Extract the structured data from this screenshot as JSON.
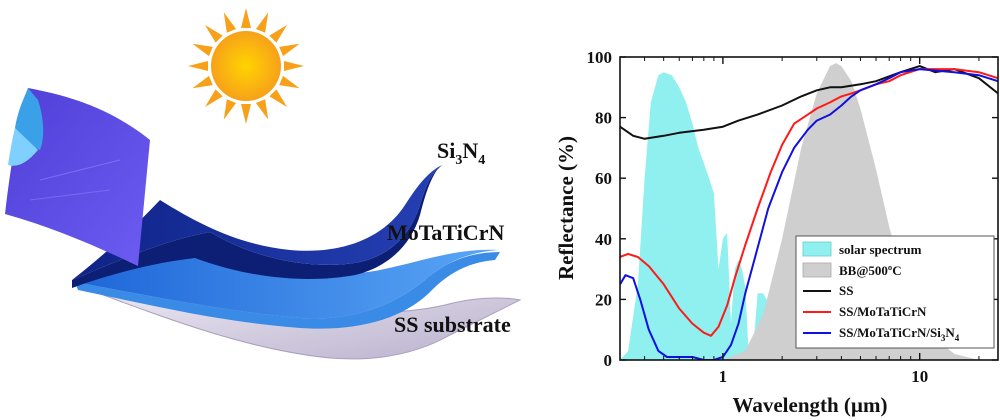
{
  "illustration": {
    "layer_top": "Si",
    "layer_top_sub1": "3",
    "layer_top_mid": "N",
    "layer_top_sub2": "4",
    "layer_mid": "MoTaTiCrN",
    "layer_bottom": "SS substrate",
    "colors": {
      "sun": "#f9a21b",
      "si3n4": "#1c2f9c",
      "motaticrn": "#2f86e8",
      "substrate": "#c9c2d8"
    }
  },
  "chart_data": {
    "type": "line",
    "xlabel": "Wavelength (µm)",
    "ylabel": "Reflectance (%)",
    "x_scale": "log",
    "xlim": [
      0.3,
      25
    ],
    "ylim": [
      0,
      100
    ],
    "x_ticks": [
      1,
      10
    ],
    "x_tick_labels": [
      "1",
      "10"
    ],
    "y_ticks": [
      0,
      20,
      40,
      60,
      80,
      100
    ],
    "y_tick_labels": [
      "0",
      "20",
      "40",
      "60",
      "80",
      "100"
    ],
    "legend_position": "bottom-right",
    "legend": [
      {
        "label": "solar spectrum",
        "kind": "area"
      },
      {
        "label": "BB@500ºC",
        "kind": "area"
      },
      {
        "label": "SS",
        "kind": "line"
      },
      {
        "label": "SS/MoTaTiCrN",
        "kind": "line"
      },
      {
        "label": "SS/MoTaTiCrN/Si",
        "sub1": "3",
        "mid": "N",
        "sub2": "4",
        "kind": "line"
      }
    ],
    "series": [
      {
        "name": "solar spectrum",
        "style": "area",
        "color": "#8ff0ef",
        "x": [
          0.3,
          0.33,
          0.37,
          0.4,
          0.43,
          0.47,
          0.5,
          0.55,
          0.6,
          0.65,
          0.7,
          0.75,
          0.8,
          0.85,
          0.9,
          0.95,
          1.0,
          1.05,
          1.1,
          1.15,
          1.2,
          1.25,
          1.3,
          1.35,
          1.4,
          1.45,
          1.5,
          1.6,
          1.7,
          1.8,
          1.85,
          1.9,
          2.0,
          2.1,
          2.2,
          2.3,
          2.4,
          2.5,
          2.6,
          2.7
        ],
        "y": [
          0,
          3,
          25,
          60,
          85,
          94,
          95,
          94,
          90,
          85,
          78,
          70,
          65,
          60,
          55,
          30,
          40,
          42,
          12,
          30,
          33,
          30,
          24,
          3,
          0,
          10,
          22,
          22,
          19,
          12,
          0,
          0,
          4,
          7,
          6,
          5,
          4,
          3,
          0,
          0
        ]
      },
      {
        "name": "BB@500ºC",
        "style": "area",
        "color": "#cfcfcf",
        "x": [
          1.0,
          1.3,
          1.6,
          2.0,
          2.5,
          3.0,
          3.5,
          3.75,
          4.0,
          4.5,
          5.0,
          6.0,
          7.0,
          8.0,
          10.0,
          12.0,
          15.0,
          20.0,
          25.0
        ],
        "y": [
          0,
          3,
          15,
          40,
          70,
          88,
          97,
          98,
          97,
          92,
          83,
          63,
          44,
          30,
          14,
          7,
          2,
          0,
          0
        ]
      },
      {
        "name": "SS",
        "style": "line",
        "color": "#111111",
        "x": [
          0.3,
          0.35,
          0.4,
          0.5,
          0.6,
          0.8,
          1.0,
          1.2,
          1.5,
          2.0,
          2.5,
          3.0,
          3.5,
          4.0,
          5.0,
          6.0,
          8.0,
          10.0,
          12.0,
          15.0,
          20.0,
          25.0
        ],
        "y": [
          77,
          74,
          73,
          74,
          75,
          76,
          77,
          79,
          81,
          84,
          87,
          89,
          90,
          90,
          91,
          92,
          95,
          97,
          95,
          96,
          93,
          88
        ]
      },
      {
        "name": "SS/MoTaTiCrN",
        "style": "line",
        "color": "#ff1a1a",
        "x": [
          0.3,
          0.33,
          0.37,
          0.42,
          0.5,
          0.6,
          0.7,
          0.8,
          0.87,
          0.95,
          1.05,
          1.15,
          1.3,
          1.5,
          1.75,
          2.0,
          2.3,
          2.7,
          3.0,
          3.5,
          4.0,
          4.5,
          5.0,
          6.0,
          7.0,
          8.0,
          10.0,
          15.0,
          20.0,
          25.0
        ],
        "y": [
          34,
          35,
          34,
          31,
          25,
          17,
          12,
          9,
          8,
          11,
          18,
          27,
          38,
          50,
          62,
          71,
          78,
          81,
          83,
          85,
          87,
          88,
          89,
          91,
          92,
          94,
          96,
          96,
          95,
          93
        ]
      },
      {
        "name": "SS/MoTaTiCrN/Si3N4",
        "style": "line",
        "color": "#1010e0",
        "x": [
          0.3,
          0.32,
          0.35,
          0.38,
          0.42,
          0.47,
          0.52,
          0.6,
          0.7,
          0.8,
          0.9,
          1.0,
          1.1,
          1.2,
          1.3,
          1.5,
          1.7,
          2.0,
          2.3,
          2.7,
          3.0,
          3.5,
          4.0,
          4.5,
          5.0,
          6.0,
          7.0,
          8.0,
          10.0,
          15.0,
          20.0,
          25.0
        ],
        "y": [
          25,
          28,
          27,
          20,
          10,
          3,
          1,
          1,
          1,
          0,
          0,
          1,
          5,
          12,
          22,
          37,
          50,
          62,
          70,
          76,
          79,
          81,
          84,
          87,
          89,
          91,
          93,
          95,
          96,
          95,
          94,
          92
        ]
      }
    ]
  }
}
